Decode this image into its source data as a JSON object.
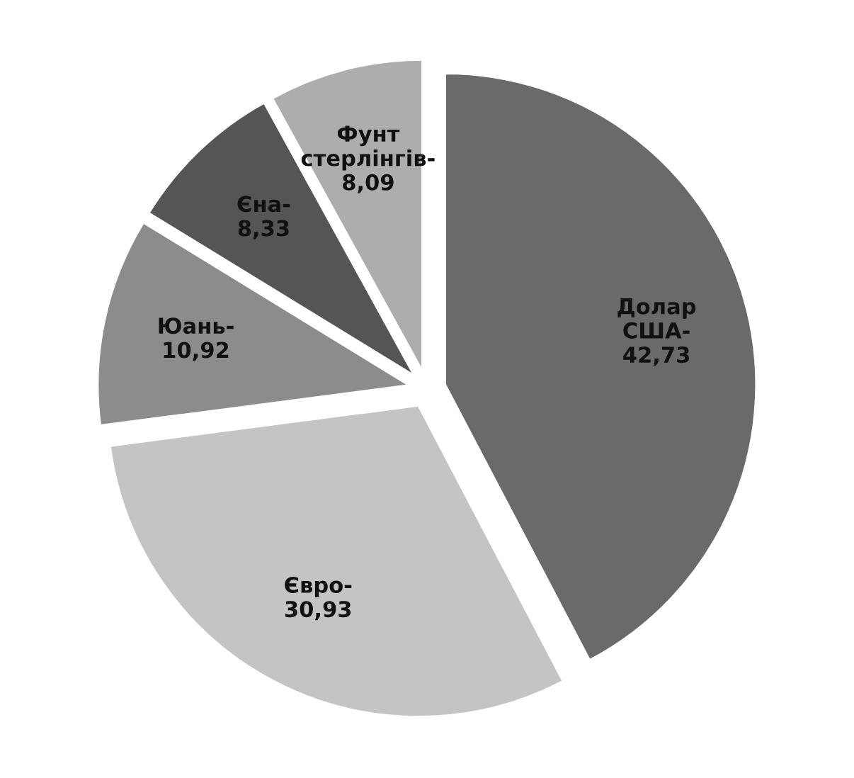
{
  "chart_data": {
    "type": "pie",
    "categories": [
      "Долар США-",
      "Євро-",
      "Юань-",
      "Єна-",
      "Фунт стерлінгів-"
    ],
    "values": [
      42.73,
      30.93,
      10.92,
      8.33,
      8.09
    ],
    "value_labels": [
      "42,73",
      "30,93",
      "10,92",
      "8,33",
      "8,09"
    ],
    "colors": [
      "#6a6a6a",
      "#c4c4c4",
      "#8c8c8c",
      "#555555",
      "#adadad"
    ]
  }
}
